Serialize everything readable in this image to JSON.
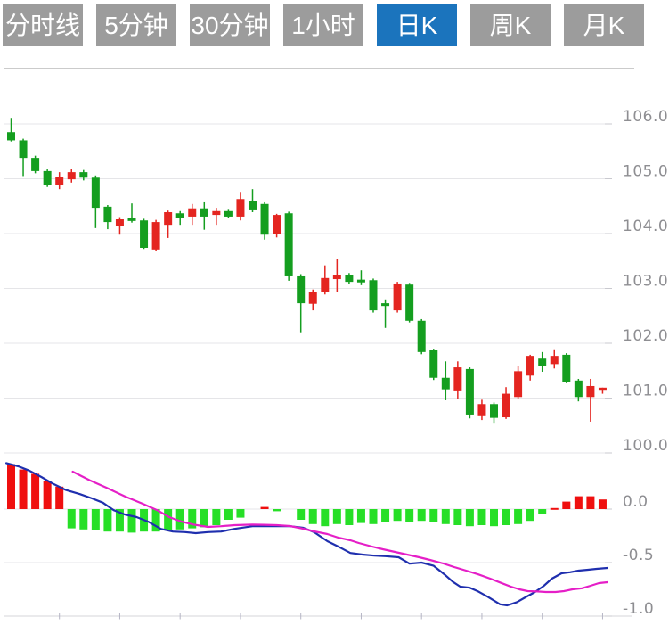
{
  "tabs": {
    "items": [
      {
        "id": "timeline",
        "label": "分时线",
        "active": false
      },
      {
        "id": "5min",
        "label": "5分钟",
        "active": false
      },
      {
        "id": "30min",
        "label": "30分钟",
        "active": false
      },
      {
        "id": "1hour",
        "label": "1小时",
        "active": false
      },
      {
        "id": "daily",
        "label": "日K",
        "active": true
      },
      {
        "id": "weekly",
        "label": "周K",
        "active": false
      },
      {
        "id": "monthly",
        "label": "月K",
        "active": false
      }
    ]
  },
  "colors": {
    "tab_bg": "#9c9c9c",
    "tab_active_bg": "#1b74bd",
    "tab_text": "#ffffff",
    "candle_up": "#e42520",
    "candle_down": "#149e1f",
    "hist_up": "#ef0f0f",
    "hist_down": "#27df27",
    "dif_line": "#1f2fae",
    "dea_line": "#e51fc7",
    "grid": "#e5e5e8",
    "axis_text": "#8e8e92",
    "axis_tick": "#c9c9cf",
    "bottom_axis": "#d4d4da",
    "bottom_tick": "#b5b5c5",
    "separator": "#cbcbcb"
  },
  "chart_data": [
    {
      "type": "candlestick",
      "name": "daily-kline",
      "note": "日K candlestick pane; Chinese convention: red = close above open (up), green = close below open (down)",
      "y_axis": {
        "side": "right",
        "range_hint": [
          99.9,
          106.6
        ],
        "ticks": [
          {
            "value": 106.0,
            "label": "106.0"
          },
          {
            "value": 105.0,
            "label": "105.0"
          },
          {
            "value": 104.0,
            "label": "104.0"
          },
          {
            "value": 103.0,
            "label": "103.0"
          },
          {
            "value": 102.0,
            "label": "102.0"
          },
          {
            "value": 101.0,
            "label": "101.0"
          },
          {
            "value": 100.0,
            "label": "100.0"
          }
        ]
      },
      "ohlc": [
        [
          105.85,
          106.11,
          105.68,
          105.7
        ],
        [
          105.7,
          105.73,
          105.05,
          105.38
        ],
        [
          105.38,
          105.42,
          105.1,
          105.14
        ],
        [
          105.14,
          105.17,
          104.85,
          104.89
        ],
        [
          104.88,
          105.12,
          104.81,
          105.04
        ],
        [
          104.99,
          105.18,
          104.93,
          105.12
        ],
        [
          105.12,
          105.16,
          104.97,
          105.02
        ],
        [
          105.02,
          105.06,
          104.1,
          104.47
        ],
        [
          104.49,
          104.52,
          104.08,
          104.21
        ],
        [
          104.13,
          104.3,
          103.98,
          104.26
        ],
        [
          104.29,
          104.55,
          104.2,
          104.23
        ],
        [
          104.24,
          104.27,
          103.72,
          103.74
        ],
        [
          103.71,
          104.25,
          103.68,
          104.21
        ],
        [
          104.16,
          104.42,
          103.92,
          104.39
        ],
        [
          104.37,
          104.41,
          104.16,
          104.28
        ],
        [
          104.31,
          104.54,
          104.16,
          104.46
        ],
        [
          104.46,
          104.57,
          104.07,
          104.31
        ],
        [
          104.34,
          104.47,
          104.16,
          104.41
        ],
        [
          104.41,
          104.45,
          104.28,
          104.31
        ],
        [
          104.31,
          104.76,
          104.24,
          104.63
        ],
        [
          104.59,
          104.81,
          104.39,
          104.44
        ],
        [
          104.54,
          104.57,
          103.89,
          103.98
        ],
        [
          104.0,
          104.36,
          103.93,
          104.34
        ],
        [
          104.37,
          104.4,
          103.14,
          103.22
        ],
        [
          103.22,
          103.26,
          102.2,
          102.73
        ],
        [
          102.72,
          102.98,
          102.6,
          102.94
        ],
        [
          102.94,
          103.42,
          102.89,
          103.19
        ],
        [
          103.17,
          103.53,
          102.93,
          103.25
        ],
        [
          103.24,
          103.28,
          103.08,
          103.12
        ],
        [
          103.16,
          103.33,
          103.06,
          103.11
        ],
        [
          103.15,
          103.18,
          102.56,
          102.6
        ],
        [
          102.73,
          102.8,
          102.28,
          102.68
        ],
        [
          102.6,
          103.12,
          102.56,
          103.09
        ],
        [
          103.07,
          103.1,
          102.38,
          102.41
        ],
        [
          102.41,
          102.44,
          101.8,
          101.84
        ],
        [
          101.87,
          101.9,
          101.33,
          101.37
        ],
        [
          101.37,
          101.67,
          100.96,
          101.16
        ],
        [
          101.14,
          101.67,
          100.99,
          101.56
        ],
        [
          101.53,
          101.56,
          100.63,
          100.7
        ],
        [
          100.67,
          100.97,
          100.6,
          100.89
        ],
        [
          100.89,
          100.92,
          100.55,
          100.64
        ],
        [
          100.65,
          101.2,
          100.62,
          101.08
        ],
        [
          101.02,
          101.59,
          100.98,
          101.49
        ],
        [
          101.41,
          101.79,
          101.32,
          101.77
        ],
        [
          101.72,
          101.84,
          101.48,
          101.59
        ],
        [
          101.62,
          101.89,
          101.54,
          101.77
        ],
        [
          101.79,
          101.82,
          101.27,
          101.3
        ],
        [
          101.32,
          101.35,
          100.94,
          101.02
        ],
        [
          101.02,
          101.35,
          100.57,
          101.22
        ],
        [
          101.19,
          101.19,
          101.08,
          101.19
        ]
      ]
    },
    {
      "type": "bar",
      "name": "MACD",
      "note": "MACD pane: histogram red above zero / green below zero, DIF (dark blue) and DEA (magenta) lines; x in candle-index units",
      "y_axis": {
        "side": "right",
        "range_hint": [
          -1.05,
          0.5
        ],
        "ticks": [
          {
            "value": 0.0,
            "label": "0.0"
          },
          {
            "value": -0.5,
            "label": "-0.5"
          },
          {
            "value": -1.0,
            "label": "-1.0"
          }
        ]
      },
      "x_axis": {
        "tick_positions": [
          4.0,
          9.0,
          14.0,
          19.0,
          24.0,
          29.0,
          34.0,
          39.0,
          44.0,
          49.0
        ]
      },
      "histogram": [
        0.42,
        0.37,
        0.33,
        0.26,
        0.21,
        -0.18,
        -0.19,
        -0.2,
        -0.21,
        -0.21,
        -0.22,
        -0.21,
        -0.21,
        -0.2,
        -0.19,
        -0.18,
        -0.17,
        -0.15,
        -0.1,
        -0.08,
        0.0,
        0.02,
        -0.02,
        0.0,
        -0.1,
        -0.14,
        -0.16,
        -0.14,
        -0.15,
        -0.13,
        -0.14,
        -0.12,
        -0.11,
        -0.12,
        -0.11,
        -0.12,
        -0.14,
        -0.15,
        -0.16,
        -0.15,
        -0.16,
        -0.15,
        -0.14,
        -0.11,
        -0.05,
        0.01,
        0.07,
        0.12,
        0.12,
        0.09
      ],
      "series": [
        {
          "name": "DIF",
          "color_key": "dif_line",
          "points": [
            [
              -0.4,
              0.43
            ],
            [
              0.6,
              0.4
            ],
            [
              1.5,
              0.36
            ],
            [
              2.5,
              0.3
            ],
            [
              3.5,
              0.235
            ],
            [
              4.5,
              0.18
            ],
            [
              5.7,
              0.14
            ],
            [
              6.7,
              0.1
            ],
            [
              7.6,
              0.06
            ],
            [
              8.5,
              -0.01
            ],
            [
              9.4,
              -0.05
            ],
            [
              10.4,
              -0.075
            ],
            [
              11.4,
              -0.12
            ],
            [
              12.4,
              -0.185
            ],
            [
              13.4,
              -0.21
            ],
            [
              14.4,
              -0.215
            ],
            [
              15.3,
              -0.225
            ],
            [
              16.3,
              -0.215
            ],
            [
              17.4,
              -0.21
            ],
            [
              18.5,
              -0.185
            ],
            [
              20.0,
              -0.16
            ],
            [
              22.0,
              -0.16
            ],
            [
              23.1,
              -0.16
            ],
            [
              24.2,
              -0.175
            ],
            [
              25.1,
              -0.215
            ],
            [
              26.2,
              -0.3
            ],
            [
              27.1,
              -0.35
            ],
            [
              28.1,
              -0.41
            ],
            [
              29.1,
              -0.425
            ],
            [
              30.1,
              -0.435
            ],
            [
              31.0,
              -0.44
            ],
            [
              32.1,
              -0.45
            ],
            [
              33.0,
              -0.51
            ],
            [
              34.0,
              -0.5
            ],
            [
              35.0,
              -0.53
            ],
            [
              36.0,
              -0.62
            ],
            [
              36.6,
              -0.68
            ],
            [
              37.2,
              -0.725
            ],
            [
              38.0,
              -0.735
            ],
            [
              38.7,
              -0.77
            ],
            [
              39.5,
              -0.82
            ],
            [
              40.5,
              -0.89
            ],
            [
              41.1,
              -0.9
            ],
            [
              41.9,
              -0.87
            ],
            [
              42.6,
              -0.825
            ],
            [
              43.4,
              -0.775
            ],
            [
              44.1,
              -0.72
            ],
            [
              44.8,
              -0.65
            ],
            [
              45.6,
              -0.6
            ],
            [
              46.3,
              -0.59
            ],
            [
              47.0,
              -0.575
            ],
            [
              47.8,
              -0.567
            ],
            [
              48.5,
              -0.558
            ],
            [
              49.4,
              -0.55
            ]
          ]
        },
        {
          "name": "DEA",
          "color_key": "dea_line",
          "points": [
            [
              5.1,
              0.35
            ],
            [
              6.5,
              0.27
            ],
            [
              7.9,
              0.2
            ],
            [
              9.4,
              0.12
            ],
            [
              10.9,
              0.05
            ],
            [
              12.1,
              -0.01
            ],
            [
              13.1,
              -0.075
            ],
            [
              14.1,
              -0.117
            ],
            [
              15.1,
              -0.144
            ],
            [
              16.3,
              -0.167
            ],
            [
              17.4,
              -0.16
            ],
            [
              18.5,
              -0.15
            ],
            [
              20.0,
              -0.145
            ],
            [
              21.0,
              -0.147
            ],
            [
              22.0,
              -0.15
            ],
            [
              23.1,
              -0.158
            ],
            [
              24.2,
              -0.183
            ],
            [
              25.1,
              -0.208
            ],
            [
              26.2,
              -0.233
            ],
            [
              27.1,
              -0.267
            ],
            [
              28.1,
              -0.292
            ],
            [
              28.8,
              -0.317
            ],
            [
              29.9,
              -0.35
            ],
            [
              30.8,
              -0.375
            ],
            [
              31.8,
              -0.4
            ],
            [
              32.8,
              -0.425
            ],
            [
              33.8,
              -0.45
            ],
            [
              34.7,
              -0.475
            ],
            [
              35.8,
              -0.508
            ],
            [
              36.7,
              -0.542
            ],
            [
              37.7,
              -0.575
            ],
            [
              38.7,
              -0.61
            ],
            [
              39.7,
              -0.65
            ],
            [
              40.6,
              -0.69
            ],
            [
              41.4,
              -0.725
            ],
            [
              42.1,
              -0.75
            ],
            [
              42.8,
              -0.767
            ],
            [
              43.6,
              -0.77
            ],
            [
              44.3,
              -0.775
            ],
            [
              45.1,
              -0.775
            ],
            [
              45.8,
              -0.767
            ],
            [
              46.5,
              -0.75
            ],
            [
              47.3,
              -0.74
            ],
            [
              48.0,
              -0.717
            ],
            [
              48.7,
              -0.692
            ],
            [
              49.4,
              -0.683
            ]
          ]
        }
      ]
    }
  ]
}
